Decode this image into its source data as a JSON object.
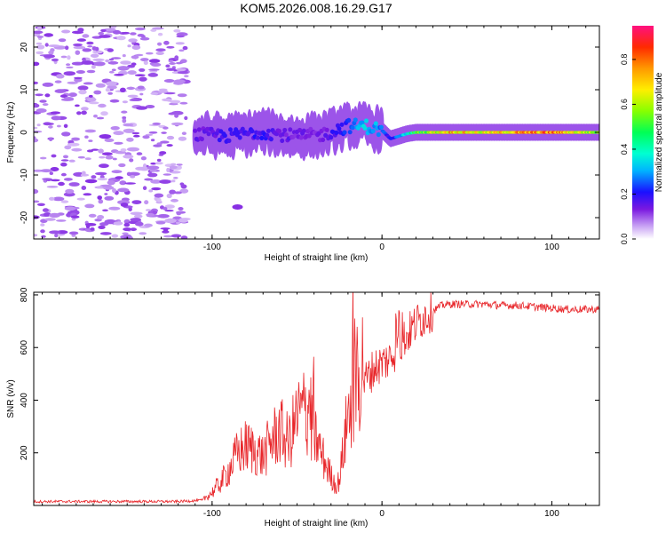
{
  "title": "KOM5.2026.008.16.29.G17",
  "chart_data": [
    {
      "type": "heatmap",
      "name": "spectrogram",
      "xlabel": "Height of straight line (km)",
      "ylabel": "Frequency (Hz)",
      "xlim": [
        -205,
        128
      ],
      "ylim": [
        -25,
        25
      ],
      "xticks": [
        -100,
        0,
        100
      ],
      "yticks": [
        -20,
        -10,
        0,
        10,
        20
      ],
      "colorbar": {
        "label": "Normalized spectral amplitude",
        "range": [
          0,
          0.95
        ],
        "ticks": [
          0.0,
          0.2,
          0.4,
          0.6,
          0.8
        ]
      },
      "description_series": [
        {
          "name": "main-trace",
          "x": [
            -110,
            -90,
            -70,
            -50,
            -35,
            -20,
            -10,
            0,
            5,
            15,
            20,
            40,
            60,
            80,
            100,
            128
          ],
          "freq": [
            -0.5,
            -0.8,
            0.2,
            -1.0,
            -0.5,
            1.5,
            1.5,
            0.5,
            -1.5,
            -0.3,
            0.0,
            0.0,
            0.0,
            0.0,
            0.0,
            0.0
          ],
          "amplitude": [
            0.15,
            0.2,
            0.2,
            0.15,
            0.15,
            0.25,
            0.35,
            0.3,
            0.2,
            0.4,
            0.55,
            0.8,
            0.7,
            0.8,
            0.85,
            0.6
          ]
        }
      ]
    },
    {
      "type": "line",
      "name": "snr",
      "xlabel": "Height of straight line (km)",
      "ylabel": "SNR (v/v)",
      "xlim": [
        -205,
        128
      ],
      "ylim": [
        0,
        810
      ],
      "xticks": [
        -100,
        0,
        100
      ],
      "yticks": [
        200,
        400,
        600,
        800
      ],
      "series": [
        {
          "name": "SNR",
          "color": "#e8262a",
          "x": [
            -205,
            -180,
            -160,
            -140,
            -120,
            -105,
            -100,
            -95,
            -90,
            -85,
            -80,
            -75,
            -70,
            -65,
            -60,
            -55,
            -50,
            -45,
            -40,
            -35,
            -30,
            -27,
            -25,
            -20,
            -15,
            -12,
            -10,
            -5,
            0,
            5,
            10,
            15,
            20,
            25,
            30,
            35,
            40,
            50,
            60,
            70,
            80,
            90,
            100,
            110,
            120,
            128
          ],
          "y": [
            15,
            15,
            15,
            15,
            15,
            20,
            40,
            70,
            110,
            160,
            180,
            170,
            150,
            200,
            230,
            190,
            270,
            300,
            220,
            150,
            90,
            60,
            80,
            280,
            380,
            420,
            470,
            520,
            540,
            560,
            610,
            650,
            690,
            720,
            740,
            760,
            765,
            765,
            765,
            760,
            760,
            755,
            750,
            745,
            745,
            745
          ]
        }
      ]
    }
  ]
}
